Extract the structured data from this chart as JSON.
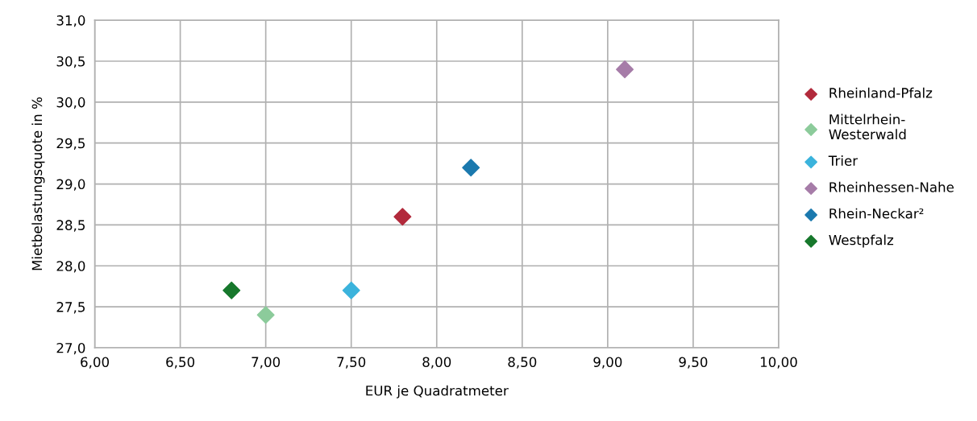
{
  "chart_data": {
    "type": "scatter",
    "xlabel": "EUR je Quadratmeter",
    "ylabel": "Mietbelastungsquote in %",
    "series": [
      {
        "name": "Rheinland-Pfalz",
        "color": "#b22a3c",
        "x": [
          7.8
        ],
        "values": [
          28.6
        ]
      },
      {
        "name": "Mittelrhein-\nWesterwald",
        "color": "#8ccb9b",
        "x": [
          7.0
        ],
        "values": [
          27.4
        ]
      },
      {
        "name": "Trier",
        "color": "#3bb3dc",
        "x": [
          7.5
        ],
        "values": [
          27.7
        ]
      },
      {
        "name": "Rheinhessen-Nahe",
        "color": "#a67ca8",
        "x": [
          9.1
        ],
        "values": [
          30.4
        ]
      },
      {
        "name": "Rhein-Neckar²",
        "color": "#1b79ae",
        "x": [
          8.2
        ],
        "values": [
          29.2
        ]
      },
      {
        "name": "Westpfalz",
        "color": "#17782c",
        "x": [
          6.8
        ],
        "values": [
          27.7
        ]
      }
    ],
    "xlim": [
      6,
      10
    ],
    "xticks": [
      {
        "value": 6,
        "label": "6,00"
      },
      {
        "value": 6.5,
        "label": "6,50"
      },
      {
        "value": 7,
        "label": "7,00"
      },
      {
        "value": 7.5,
        "label": "7,50"
      },
      {
        "value": 8,
        "label": "8,00"
      },
      {
        "value": 8.5,
        "label": "8,50"
      },
      {
        "value": 9,
        "label": "9,00"
      },
      {
        "value": 9.5,
        "label": "9,50"
      },
      {
        "value": 10,
        "label": "10,00"
      }
    ],
    "ylim": [
      27,
      31
    ],
    "yticks": [
      {
        "value": 27,
        "label": "27,0"
      },
      {
        "value": 27.5,
        "label": "27,5"
      },
      {
        "value": 28,
        "label": "28,0"
      },
      {
        "value": 28.5,
        "label": "28,5"
      },
      {
        "value": 29,
        "label": "29,0"
      },
      {
        "value": 29.5,
        "label": "29,5"
      },
      {
        "value": 30,
        "label": "30,0"
      },
      {
        "value": 30.5,
        "label": "30,5"
      },
      {
        "value": 31,
        "label": "31,0"
      }
    ],
    "grid": true,
    "legend": "right",
    "marker": "diamond"
  }
}
